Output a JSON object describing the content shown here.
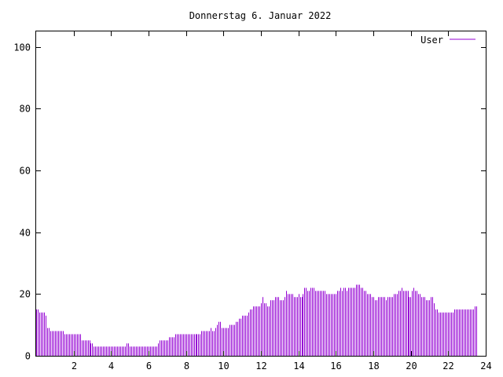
{
  "chart_data": {
    "type": "bar",
    "title": "Donnerstag 6. Januar 2022",
    "xlabel": "",
    "ylabel": "",
    "xlim": [
      0,
      24
    ],
    "ylim": [
      0,
      105
    ],
    "x_ticks": [
      2,
      4,
      6,
      8,
      10,
      12,
      14,
      16,
      18,
      20,
      22,
      24
    ],
    "y_ticks": [
      0,
      20,
      40,
      60,
      80,
      100
    ],
    "grid": false,
    "legend_position": "top-right",
    "series": [
      {
        "name": "User",
        "color": "#9400d3",
        "sample_interval_hours": 0.0833,
        "values": [
          15,
          15,
          14,
          14,
          14,
          14,
          13,
          9,
          9,
          8,
          8,
          8,
          8,
          8,
          8,
          8,
          8,
          8,
          7,
          7,
          7,
          7,
          7,
          7,
          7,
          7,
          7,
          7,
          7,
          5,
          5,
          5,
          5,
          5,
          5,
          4,
          4,
          3,
          3,
          3,
          3,
          3,
          3,
          3,
          3,
          3,
          3,
          3,
          3,
          3,
          3,
          3,
          3,
          3,
          3,
          3,
          3,
          3,
          4,
          4,
          3,
          3,
          3,
          3,
          3,
          3,
          3,
          3,
          3,
          3,
          3,
          3,
          3,
          3,
          3,
          3,
          3,
          3,
          4,
          5,
          5,
          5,
          5,
          5,
          5,
          6,
          6,
          6,
          6,
          7,
          7,
          7,
          7,
          7,
          7,
          7,
          7,
          7,
          7,
          7,
          7,
          7,
          7,
          7,
          7,
          7,
          8,
          8,
          8,
          8,
          8,
          8,
          9,
          8,
          8,
          9,
          10,
          11,
          11,
          9,
          9,
          9,
          9,
          9,
          10,
          10,
          10,
          10,
          11,
          11,
          12,
          12,
          13,
          13,
          13,
          13,
          14,
          15,
          15,
          16,
          16,
          16,
          16,
          16,
          17,
          19,
          17,
          17,
          16,
          16,
          18,
          18,
          18,
          19,
          19,
          19,
          18,
          18,
          18,
          19,
          21,
          20,
          20,
          20,
          20,
          19,
          19,
          19,
          20,
          19,
          19,
          20,
          22,
          22,
          21,
          21,
          22,
          22,
          22,
          21,
          21,
          21,
          21,
          21,
          21,
          21,
          20,
          20,
          20,
          20,
          20,
          20,
          20,
          21,
          21,
          22,
          21,
          22,
          22,
          21,
          22,
          22,
          22,
          22,
          22,
          23,
          23,
          23,
          22,
          22,
          21,
          21,
          20,
          20,
          20,
          19,
          19,
          18,
          18,
          19,
          19,
          19,
          19,
          19,
          18,
          19,
          19,
          19,
          19,
          20,
          20,
          20,
          21,
          21,
          22,
          21,
          21,
          21,
          21,
          19,
          19,
          21,
          22,
          21,
          21,
          20,
          20,
          19,
          19,
          19,
          18,
          18,
          18,
          19,
          19,
          17,
          15,
          15,
          14,
          14,
          14,
          14,
          14,
          14,
          14,
          14,
          14,
          14,
          15,
          15,
          15,
          15,
          15,
          15,
          15,
          15,
          15,
          15,
          15,
          15,
          15,
          16,
          16
        ]
      }
    ]
  }
}
